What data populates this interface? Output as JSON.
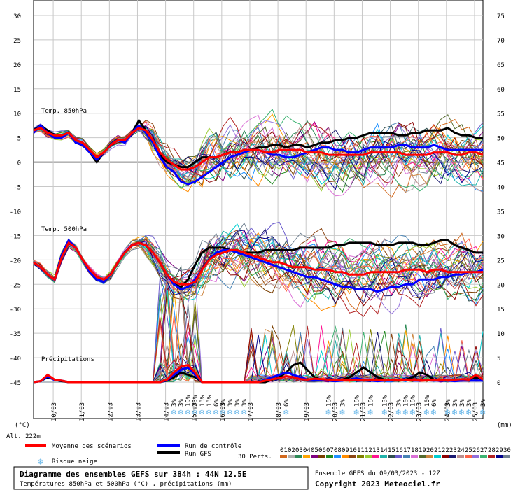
{
  "chart_data": {
    "type": "line",
    "left_axis": {
      "unit": "(°C)",
      "ticks": [
        30,
        25,
        20,
        15,
        10,
        5,
        0,
        -5,
        -10,
        -15,
        -20,
        -25,
        -30,
        -35,
        -40,
        -45
      ],
      "range": [
        -45,
        30
      ]
    },
    "right_axis": {
      "unit": "(mm)",
      "ticks": [
        75,
        70,
        65,
        60,
        55,
        50,
        45,
        40,
        35,
        30,
        25,
        20,
        15,
        10,
        5,
        0
      ]
    },
    "dates": [
      "10/03",
      "11/03",
      "12/03",
      "13/03",
      "14/03",
      "15/03",
      "16/03",
      "17/03",
      "18/03",
      "19/03",
      "20/03",
      "21/03",
      "22/03",
      "23/03",
      "24/03",
      "25/03"
    ],
    "panel_labels": {
      "t850": "Temp. 850hPa",
      "t500": "Temp. 500hPa",
      "precip": "Précipitations"
    },
    "altitude": "Alt. 222m",
    "x_step_hours": 6,
    "series": [
      {
        "name": "Moyenne des scénarios",
        "color": "#ff0000",
        "t850": [
          6.5,
          7,
          6,
          5.5,
          5.5,
          6,
          4.5,
          4,
          2.5,
          1,
          2,
          3.5,
          4.5,
          4.5,
          6,
          7,
          6.5,
          4.5,
          2,
          0.5,
          -0.5,
          -1.5,
          -1.5,
          -1,
          0,
          1,
          1,
          1.5,
          2,
          2,
          2.5,
          2.5,
          2.5,
          2,
          2,
          2.5,
          2.5,
          2.5,
          2.5,
          2,
          2,
          2,
          1.5,
          1.5,
          1.5,
          1.5,
          1.5,
          1.5,
          2,
          2,
          2,
          2,
          2,
          1.5,
          1.5,
          1.5,
          1.5,
          2,
          2,
          2,
          1.5,
          1.5,
          2,
          2,
          1.5
        ],
        "t500": [
          -20.5,
          -21.5,
          -23,
          -24,
          -19.5,
          -16.5,
          -17.5,
          -20,
          -22,
          -23.5,
          -24,
          -23,
          -20.5,
          -18.5,
          -17,
          -16.5,
          -17,
          -18.5,
          -20.5,
          -23,
          -24.5,
          -25,
          -25,
          -24.5,
          -22,
          -20,
          -19,
          -18.5,
          -18,
          -18,
          -18.5,
          -19,
          -19.5,
          -20,
          -20.5,
          -20.5,
          -21,
          -21.5,
          -21.5,
          -21.5,
          -22,
          -22,
          -22,
          -22.5,
          -22.5,
          -23,
          -23,
          -23,
          -22.5,
          -22.5,
          -22.5,
          -22.5,
          -22.5,
          -22,
          -22,
          -22,
          -22.5,
          -22,
          -22,
          -22.5,
          -22.5,
          -22.5,
          -22.5,
          -22.5,
          -22.5
        ],
        "precip": [
          0,
          0.2,
          1.5,
          0.5,
          0.3,
          0,
          0,
          0,
          0,
          0,
          0,
          0,
          0,
          0,
          0,
          0,
          0,
          0,
          0,
          0.5,
          2,
          3.2,
          3.5,
          2,
          0,
          0,
          0,
          0,
          0,
          0,
          0,
          0,
          0,
          0.3,
          0.6,
          0.8,
          1.2,
          1,
          0.6,
          0.5,
          0.7,
          0.6,
          0.5,
          0.5,
          0.4,
          0.5,
          0.5,
          0.4,
          0.4,
          0.5,
          0.5,
          0.5,
          0.5,
          0.4,
          0.5,
          0.5,
          0.5,
          0.5,
          0.5,
          0.4,
          0.5,
          0.6,
          0.5,
          1.5,
          0.5
        ]
      },
      {
        "name": "Run de contrôle",
        "color": "#0000ff",
        "t850": [
          6,
          7.5,
          6,
          5,
          5,
          6,
          4,
          3.5,
          2,
          0.5,
          2,
          3.5,
          4.5,
          4,
          6,
          7.5,
          6,
          4,
          1,
          -1,
          -2,
          -4,
          -4.5,
          -4,
          -3,
          -2,
          -1,
          0,
          1,
          1.5,
          2,
          2.5,
          2.5,
          2,
          1.5,
          1.5,
          1,
          1,
          1.5,
          2,
          2.5,
          3,
          3,
          2.5,
          2.5,
          2,
          2,
          2.5,
          3,
          3,
          3,
          3,
          3.5,
          3.5,
          3,
          3,
          3,
          3.5,
          3,
          2.5,
          2.5,
          2.5,
          2.5,
          2.5,
          2.5
        ],
        "t500": [
          -20.5,
          -21.5,
          -23,
          -24,
          -19,
          -16,
          -17.5,
          -20,
          -22.5,
          -24,
          -24.5,
          -23,
          -20.5,
          -18.5,
          -17,
          -16.5,
          -17,
          -18.5,
          -20.5,
          -23,
          -25,
          -26,
          -25.5,
          -24,
          -22,
          -20,
          -18.5,
          -18,
          -18,
          -18.5,
          -19,
          -19.5,
          -20,
          -20.5,
          -21,
          -21.5,
          -22,
          -22.5,
          -23,
          -23.5,
          -23.5,
          -24,
          -24.5,
          -25,
          -25.5,
          -25.5,
          -26,
          -26,
          -26,
          -26.5,
          -26,
          -25.5,
          -25.5,
          -25,
          -25,
          -24,
          -24,
          -24,
          -23.5,
          -23.5,
          -23,
          -23,
          -22.5,
          -22.5,
          -22
        ],
        "precip": [
          0,
          0.2,
          1.2,
          0.4,
          0.3,
          0,
          0,
          0,
          0,
          0,
          0,
          0,
          0,
          0,
          0,
          0,
          0,
          0,
          0,
          0.4,
          1.5,
          2.5,
          3,
          1.5,
          0,
          0,
          0,
          0,
          0,
          0,
          0,
          0,
          0,
          0.5,
          1,
          1.5,
          2,
          1.5,
          1,
          0.5,
          0.5,
          0.5,
          0.3,
          0.2,
          0.3,
          0.5,
          0.8,
          0.5,
          0.3,
          0.2,
          0.3,
          0.3,
          0.5,
          0.5,
          0.3,
          0.3,
          0.5,
          0.5,
          0.3,
          0.3,
          0.2,
          0.3,
          0.3,
          0.3,
          0.3
        ]
      },
      {
        "name": "Run GFS",
        "color": "#000000",
        "t850": [
          6.5,
          7.5,
          6.5,
          5.5,
          5.5,
          6,
          4,
          3.5,
          2,
          0,
          2,
          3.5,
          4.5,
          4,
          6,
          8.5,
          6.5,
          4.5,
          1.5,
          0,
          -0.5,
          -1,
          -1,
          0,
          1,
          1,
          1,
          1.5,
          2,
          2,
          2.5,
          2.5,
          3,
          3,
          3.5,
          3.5,
          3,
          3.5,
          3.5,
          3,
          3.5,
          4,
          4,
          4.5,
          4.5,
          5,
          5,
          5.5,
          6,
          6,
          6,
          6,
          5.5,
          5.5,
          6,
          6,
          6.5,
          6.5,
          6.5,
          7,
          6,
          5.5,
          5.5,
          5,
          5
        ],
        "t500": [
          -20.5,
          -21.5,
          -23,
          -24,
          -19,
          -16,
          -17.5,
          -20,
          -22.5,
          -24,
          -24.5,
          -23,
          -20.5,
          -18.5,
          -17,
          -16.5,
          -17,
          -18.5,
          -20.5,
          -23,
          -25,
          -25.5,
          -24,
          -21,
          -18.5,
          -17.5,
          -17.5,
          -17.5,
          -18,
          -18,
          -18.5,
          -18.5,
          -18.5,
          -18,
          -18,
          -18,
          -18,
          -18,
          -17.5,
          -17.5,
          -17.5,
          -17.5,
          -17.5,
          -17,
          -17,
          -16.5,
          -16.5,
          -16.5,
          -16.5,
          -17,
          -17,
          -17,
          -16.5,
          -16.5,
          -16.5,
          -17,
          -17,
          -16.5,
          -16,
          -16,
          -17,
          -17.5,
          -18,
          -18.5,
          -18.5
        ],
        "precip": [
          0,
          0.2,
          1,
          0.5,
          0.2,
          0,
          0,
          0,
          0,
          0,
          0,
          0,
          0,
          0,
          0,
          0,
          0,
          0,
          0,
          0.3,
          1,
          2,
          1.5,
          1,
          0,
          0,
          0,
          0,
          0,
          0,
          0,
          0,
          0,
          0,
          0.5,
          1,
          2,
          3.5,
          4,
          2.5,
          1,
          0.5,
          0.3,
          0.2,
          0.5,
          1,
          2,
          3,
          2,
          1,
          0.5,
          0.3,
          0.3,
          0.5,
          1,
          2,
          1.5,
          0.5,
          0.3,
          0.3,
          0.3,
          0.5,
          0.5,
          1,
          0.5
        ]
      }
    ],
    "perturbations_count_label": "30 Perts.",
    "perturbation_ids": [
      "01",
      "02",
      "03",
      "04",
      "05",
      "06",
      "07",
      "08",
      "09",
      "10",
      "11",
      "12",
      "13",
      "14",
      "15",
      "16",
      "17",
      "18",
      "19",
      "20",
      "21",
      "22",
      "23",
      "24",
      "25",
      "26",
      "27",
      "28",
      "29",
      "30"
    ],
    "perturbation_colors": [
      "#d2691e",
      "#b0b0b0",
      "#2e8b57",
      "#ffa500",
      "#800080",
      "#7b3f00",
      "#228b22",
      "#1e90ff",
      "#ff8c00",
      "#8b4513",
      "#808000",
      "#9acd32",
      "#ff1493",
      "#20b2aa",
      "#2f4f4f",
      "#6a5acd",
      "#4682b4",
      "#da70d6",
      "#556b2f",
      "#cd853f",
      "#00ced1",
      "#8b0000",
      "#191970",
      "#bc8f8f",
      "#ff6347",
      "#9370db",
      "#3cb371",
      "#b22222",
      "#00008b",
      "#708090"
    ],
    "snow_risk": {
      "pct_row1": [
        "3%",
        "3%",
        "19%",
        "23%",
        "13%",
        "13%",
        "6%",
        "3%",
        "3%",
        "3%",
        "3%",
        "6%",
        "16%",
        "3%",
        "16%",
        "16%",
        "13%",
        "3%",
        "10%",
        "16%",
        "10%",
        "6%",
        "3%",
        "3%",
        "3%",
        "3%",
        "3%",
        "3%",
        "3%",
        "3%"
      ],
      "legend_label": "Risque neige"
    },
    "legend": {
      "mean": "Moyenne des scénarios",
      "control": "Run de contrôle",
      "gfs": "Run GFS"
    },
    "footer": {
      "title": "Diagramme des ensembles GEFS sur 384h : 44N 12.5E",
      "subtitle": "Températures 850hPa et 500hPa (°C) , précipitations (mm)",
      "run": "Ensemble GEFS du 09/03/2023 - 12Z",
      "copyright": "Copyright 2023 Meteociel.fr"
    },
    "grid": true
  }
}
